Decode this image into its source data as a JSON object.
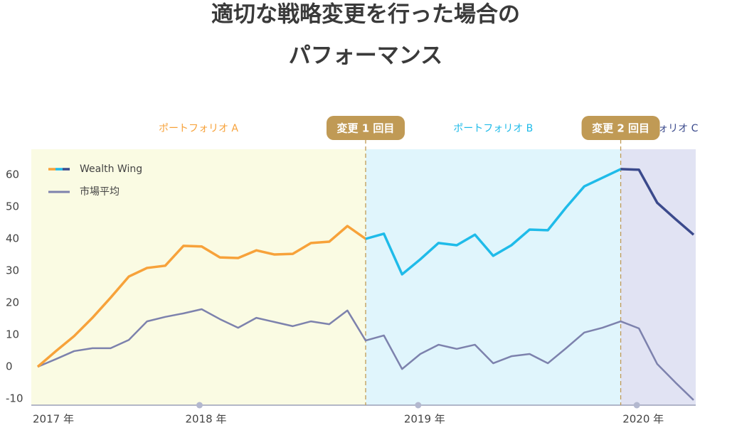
{
  "chart_data": {
    "type": "line",
    "title": [
      "適切な戦略変更を行った場合の",
      "パフォーマンス"
    ],
    "categories": [
      "2017 年",
      null,
      null,
      null,
      null,
      null,
      null,
      null,
      null,
      "2018 年",
      null,
      null,
      null,
      null,
      null,
      null,
      null,
      null,
      null,
      null,
      null,
      "2019 年",
      null,
      null,
      null,
      null,
      null,
      null,
      null,
      null,
      null,
      null,
      null,
      "2020 年",
      null,
      null,
      null
    ],
    "series": [
      {
        "name": "Wealth Wing",
        "values": [
          0,
          4.9,
          9.6,
          15.3,
          21.6,
          28.2,
          30.9,
          31.6,
          37.8,
          37.6,
          34.2,
          34.0,
          36.4,
          35.1,
          35.3,
          38.7,
          39.1,
          44.0,
          40.0,
          41.6,
          28.9,
          33.6,
          38.7,
          38.0,
          41.3,
          34.7,
          38.0,
          42.9,
          42.7,
          49.8,
          56.4,
          59.1,
          61.8,
          61.6,
          51.3,
          46.2,
          41.3
        ]
      },
      {
        "name": "市場平均",
        "color": "#7d82ad",
        "values": [
          0,
          2.4,
          4.9,
          5.8,
          5.8,
          8.4,
          14.2,
          15.6,
          16.7,
          18.0,
          14.9,
          12.2,
          15.3,
          14.0,
          12.7,
          14.2,
          13.3,
          17.6,
          8.2,
          9.8,
          -0.7,
          4.0,
          6.9,
          5.6,
          6.9,
          1.1,
          3.3,
          4.0,
          1.1,
          5.8,
          10.7,
          12.2,
          14.2,
          12.0,
          0.9,
          -4.9,
          -10.4
        ]
      }
    ],
    "regions": [
      {
        "name": "ポートフォリオ A",
        "color": "#f7a23a",
        "fill": "#fafbe3",
        "start": 0,
        "end": 18
      },
      {
        "name": "ポートフォリオ B",
        "color": "#1fbbe9",
        "fill": "#e0f5fc",
        "start": 18,
        "end": 32
      },
      {
        "name": "ポートフォリオ C",
        "color": "#3b4a8c",
        "fill": "#e1e3f3",
        "start": 32,
        "end": 36
      }
    ],
    "annotations": [
      {
        "text": "変更 1 回目",
        "at": 18
      },
      {
        "text": "変更 2 回目",
        "at": 32
      }
    ],
    "ylim": [
      -12,
      68
    ],
    "yticks": [
      -10,
      0,
      10,
      20,
      30,
      40,
      50,
      60
    ]
  }
}
